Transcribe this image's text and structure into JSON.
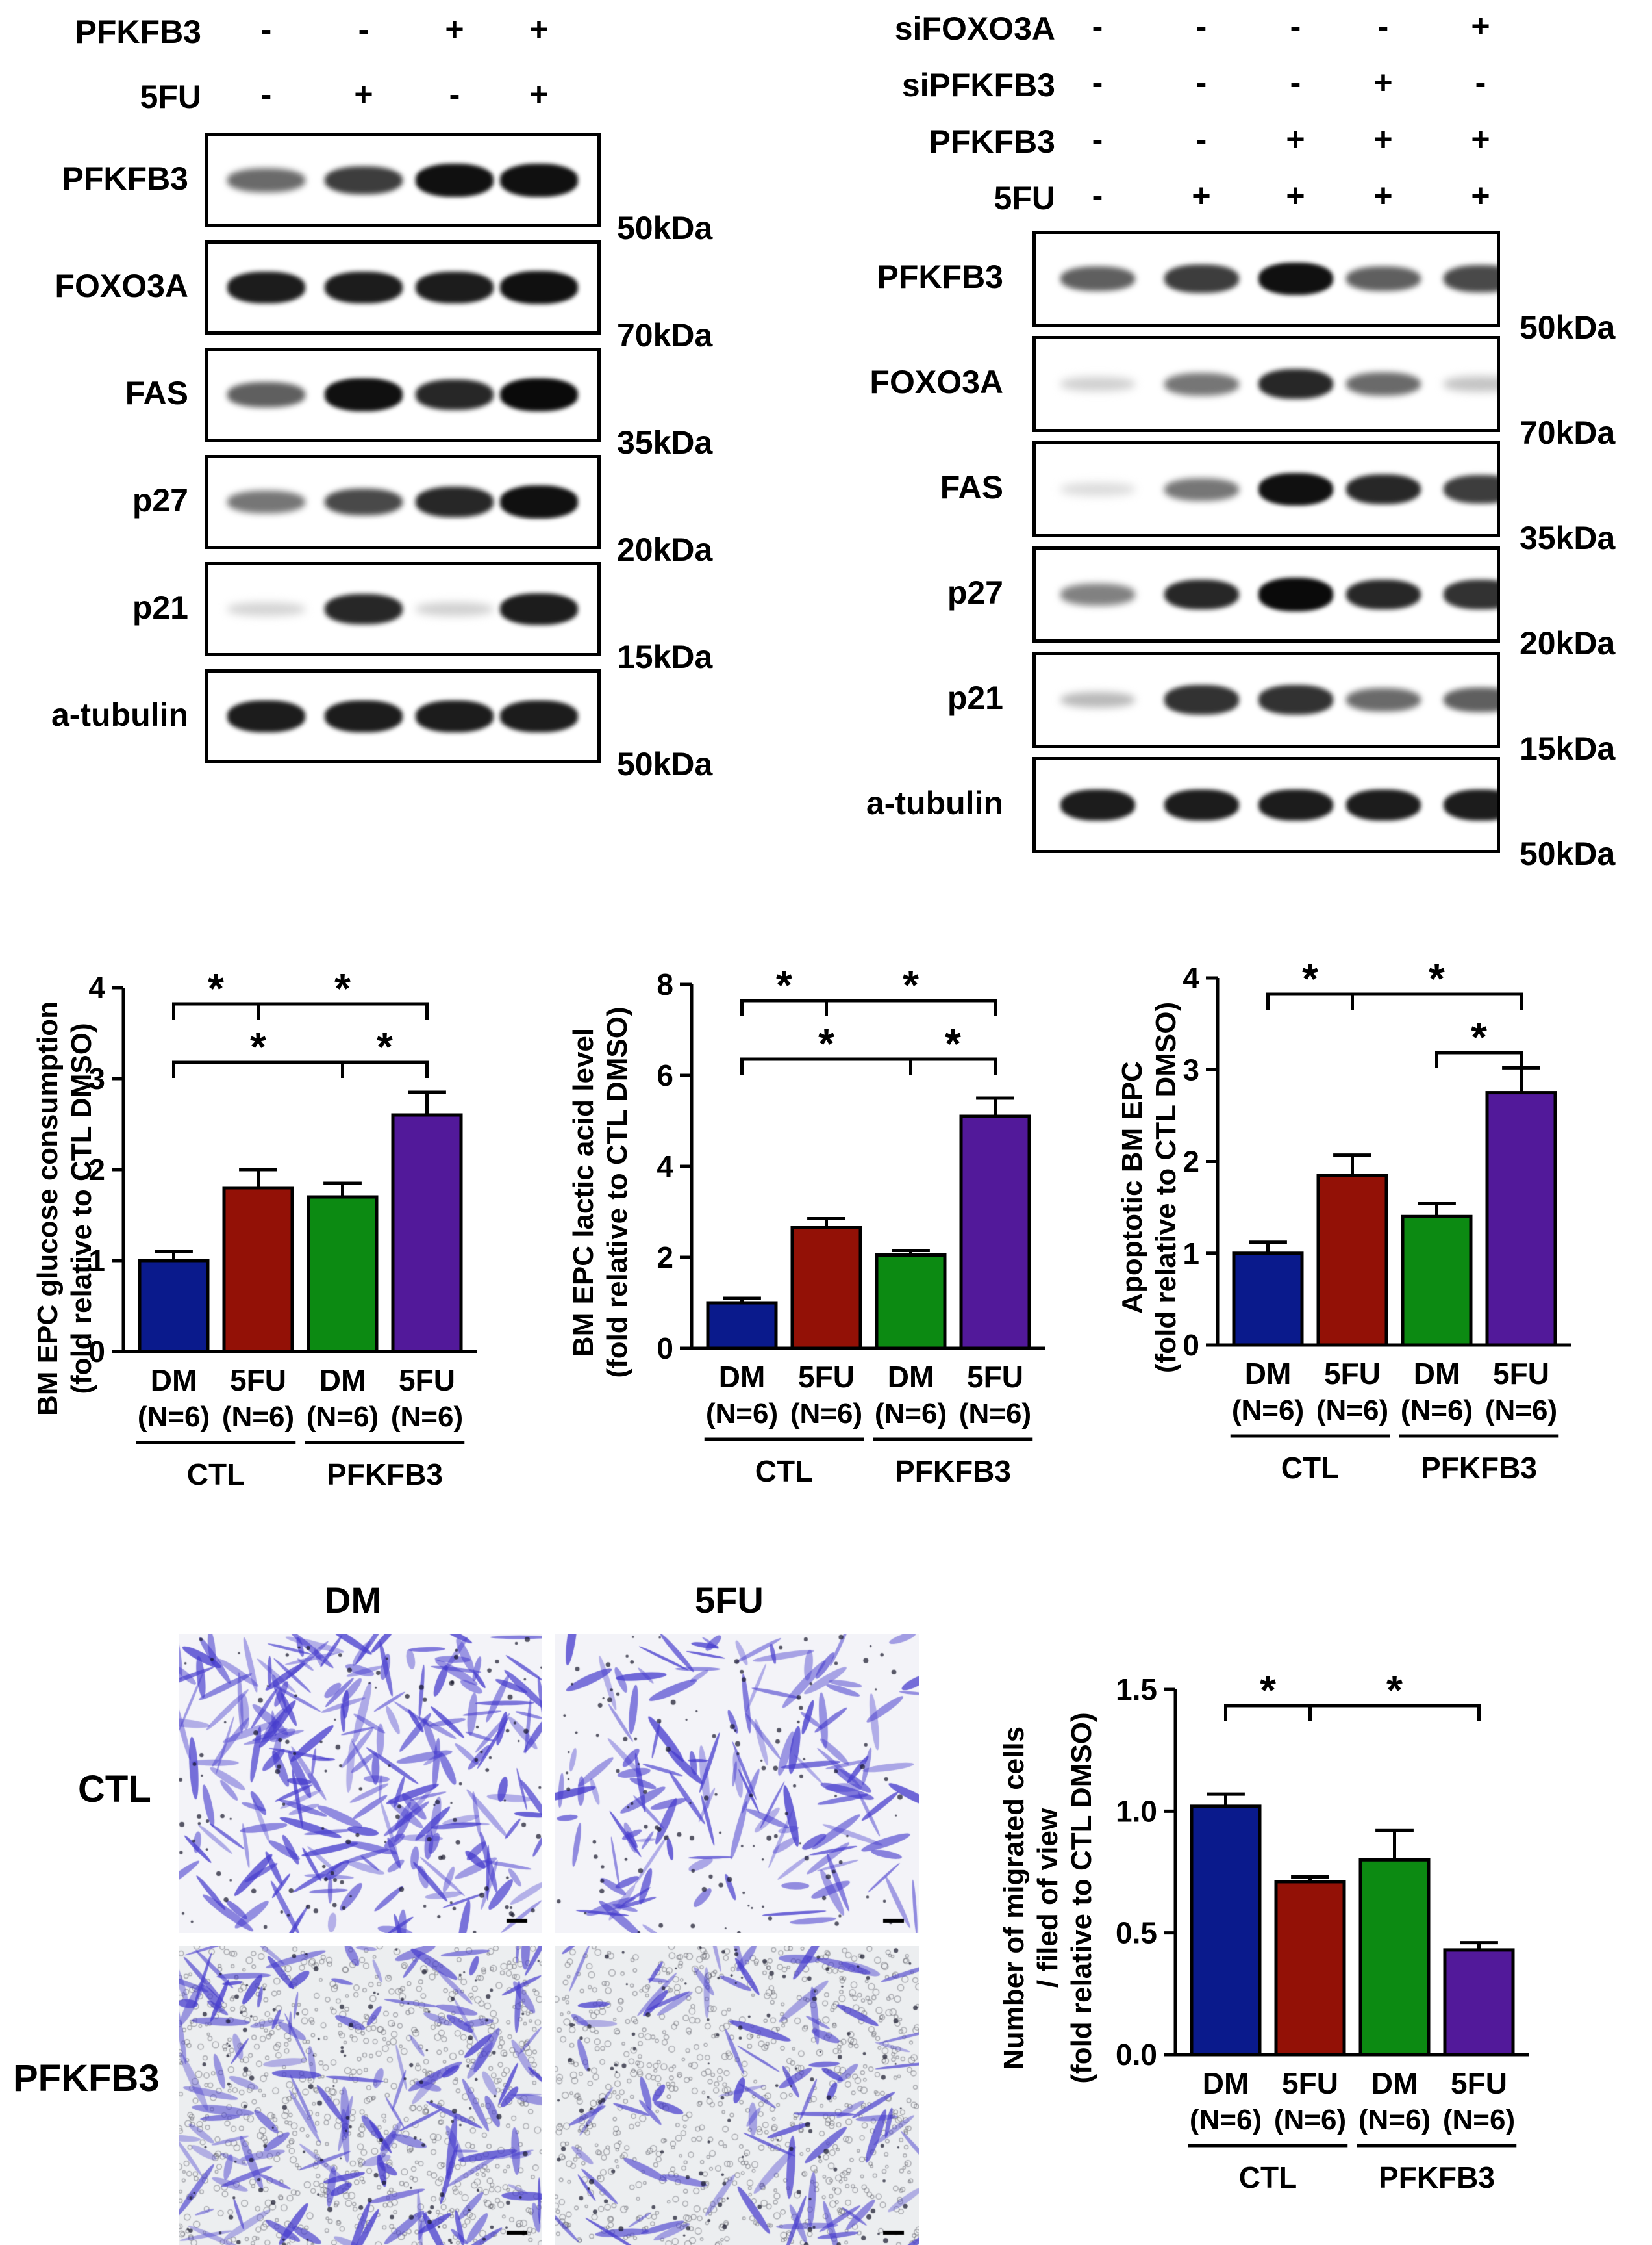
{
  "panel_a": {
    "conditions": [
      {
        "label": "PFKFB3",
        "signs": [
          "-",
          "-",
          "+",
          "+"
        ]
      },
      {
        "label": "5FU",
        "signs": [
          "-",
          "+",
          "-",
          "+"
        ]
      }
    ],
    "blots": [
      {
        "protein": "PFKFB3",
        "size": "50kDa",
        "intensity": [
          0.55,
          0.75,
          0.95,
          0.95
        ]
      },
      {
        "protein": "FOXO3A",
        "size": "70kDa",
        "intensity": [
          0.9,
          0.9,
          0.9,
          0.95
        ]
      },
      {
        "protein": "FAS",
        "size": "35kDa",
        "intensity": [
          0.6,
          0.95,
          0.85,
          0.98
        ]
      },
      {
        "protein": "p27",
        "size": "20kDa",
        "intensity": [
          0.5,
          0.7,
          0.85,
          0.95
        ]
      },
      {
        "protein": "p21",
        "size": "15kDa",
        "intensity": [
          0.08,
          0.85,
          0.1,
          0.9
        ]
      },
      {
        "protein": "a-tubulin",
        "size": "50kDa",
        "intensity": [
          0.9,
          0.9,
          0.9,
          0.9
        ]
      }
    ]
  },
  "panel_b": {
    "conditions": [
      {
        "label": "siFOXO3A",
        "signs": [
          "-",
          "-",
          "-",
          "-",
          "+"
        ]
      },
      {
        "label": "siPFKFB3",
        "signs": [
          "-",
          "-",
          "-",
          "+",
          "-"
        ]
      },
      {
        "label": "PFKFB3",
        "signs": [
          "-",
          "-",
          "+",
          "+",
          "+"
        ]
      },
      {
        "label": "5FU",
        "signs": [
          "-",
          "+",
          "+",
          "+",
          "+"
        ]
      }
    ],
    "blots": [
      {
        "protein": "PFKFB3",
        "size": "50kDa",
        "intensity": [
          0.6,
          0.75,
          0.95,
          0.6,
          0.7
        ]
      },
      {
        "protein": "FOXO3A",
        "size": "70kDa",
        "intensity": [
          0.1,
          0.5,
          0.85,
          0.55,
          0.15
        ]
      },
      {
        "protein": "FAS",
        "size": "35kDa",
        "intensity": [
          0.05,
          0.5,
          0.95,
          0.85,
          0.75
        ]
      },
      {
        "protein": "p27",
        "size": "20kDa",
        "intensity": [
          0.45,
          0.85,
          0.98,
          0.85,
          0.8
        ]
      },
      {
        "protein": "p21",
        "size": "15kDa",
        "intensity": [
          0.2,
          0.8,
          0.8,
          0.55,
          0.6
        ]
      },
      {
        "protein": "a-tubulin",
        "size": "50kDa",
        "intensity": [
          0.9,
          0.9,
          0.9,
          0.9,
          0.9
        ]
      }
    ]
  },
  "group_labels": {
    "ctl": "CTL",
    "pfkfb3": "PFKFB3"
  },
  "chart_data": [
    {
      "type": "bar",
      "ylabel_line1": "BM EPC glucose consumption",
      "ylabel_line2": "(fold relative to CTL DMSO)",
      "categories": [
        "DM",
        "5FU",
        "DM",
        "5FU"
      ],
      "n_labels": [
        "(N=6)",
        "(N=6)",
        "(N=6)",
        "(N=6)"
      ],
      "groups": [
        "CTL",
        "PFKFB3"
      ],
      "values": [
        1.0,
        1.8,
        1.7,
        2.6
      ],
      "errors": [
        0.1,
        0.2,
        0.15,
        0.25
      ],
      "ylim": [
        0,
        4
      ],
      "yticks": [
        "0",
        "1",
        "2",
        "3",
        "4"
      ],
      "significance": [
        {
          "from": 0,
          "to": 1,
          "level": 0,
          "label": "*"
        },
        {
          "from": 1,
          "to": 3,
          "level": 0,
          "label": "*"
        },
        {
          "from": 0,
          "to": 2,
          "level": 1,
          "label": "*"
        },
        {
          "from": 2,
          "to": 3,
          "level": 1,
          "label": "*"
        }
      ]
    },
    {
      "type": "bar",
      "ylabel_line1": "BM EPC lactic acid level",
      "ylabel_line2": "(fold relative to CTL DMSO)",
      "categories": [
        "DM",
        "5FU",
        "DM",
        "5FU"
      ],
      "n_labels": [
        "(N=6)",
        "(N=6)",
        "(N=6)",
        "(N=6)"
      ],
      "groups": [
        "CTL",
        "PFKFB3"
      ],
      "values": [
        1.0,
        2.65,
        2.05,
        5.1
      ],
      "errors": [
        0.1,
        0.2,
        0.1,
        0.4
      ],
      "ylim": [
        0,
        8
      ],
      "yticks": [
        "0",
        "2",
        "4",
        "6",
        "8"
      ],
      "significance": [
        {
          "from": 0,
          "to": 1,
          "level": 0,
          "label": "*"
        },
        {
          "from": 1,
          "to": 3,
          "level": 0,
          "label": "*"
        },
        {
          "from": 0,
          "to": 2,
          "level": 1,
          "label": "*"
        },
        {
          "from": 2,
          "to": 3,
          "level": 1,
          "label": "*"
        }
      ]
    },
    {
      "type": "bar",
      "ylabel_line1": "Apoptotic BM EPC",
      "ylabel_line2": "(fold relative to CTL DMSO)",
      "categories": [
        "DM",
        "5FU",
        "DM",
        "5FU"
      ],
      "n_labels": [
        "(N=6)",
        "(N=6)",
        "(N=6)",
        "(N=6)"
      ],
      "groups": [
        "CTL",
        "PFKFB3"
      ],
      "values": [
        1.0,
        1.85,
        1.4,
        2.75
      ],
      "errors": [
        0.12,
        0.22,
        0.14,
        0.27
      ],
      "ylim": [
        0,
        4
      ],
      "yticks": [
        "0",
        "1",
        "2",
        "3",
        "4"
      ],
      "significance": [
        {
          "from": 0,
          "to": 1,
          "level": 0,
          "label": "*"
        },
        {
          "from": 1,
          "to": 3,
          "level": 0,
          "label": "*"
        },
        {
          "from": 2,
          "to": 3,
          "level": 1,
          "label": "*"
        }
      ]
    },
    {
      "type": "bar",
      "ylabel_line1": "Number of migrated cells",
      "ylabel_line2": "/ filed of view",
      "ylabel_line3": "(fold relative to CTL DMSO)",
      "categories": [
        "DM",
        "5FU",
        "DM",
        "5FU"
      ],
      "n_labels": [
        "(N=6)",
        "(N=6)",
        "(N=6)",
        "(N=6)"
      ],
      "groups": [
        "CTL",
        "PFKFB3"
      ],
      "values": [
        1.02,
        0.71,
        0.8,
        0.43
      ],
      "errors": [
        0.05,
        0.02,
        0.12,
        0.03
      ],
      "ylim": [
        0,
        1.5
      ],
      "yticks": [
        "0.0",
        "0.5",
        "1.0",
        "1.5"
      ],
      "significance": [
        {
          "from": 0,
          "to": 1,
          "level": 0,
          "label": "*"
        },
        {
          "from": 1,
          "to": 3,
          "level": 0,
          "label": "*"
        }
      ]
    }
  ],
  "bar_colors": [
    "#0a1a8c",
    "#931106",
    "#0c8a12",
    "#52199a"
  ],
  "micrographs": {
    "col_labels": [
      "DM",
      "5FU"
    ],
    "row_labels": [
      "CTL",
      "PFKFB3"
    ],
    "cells": [
      {
        "density": 0.9,
        "mode": "elongated"
      },
      {
        "density": 0.55,
        "mode": "elongated"
      },
      {
        "density": 0.6,
        "mode": "dots"
      },
      {
        "density": 0.35,
        "mode": "dots"
      }
    ],
    "stain_color": "#4a3fd0"
  }
}
